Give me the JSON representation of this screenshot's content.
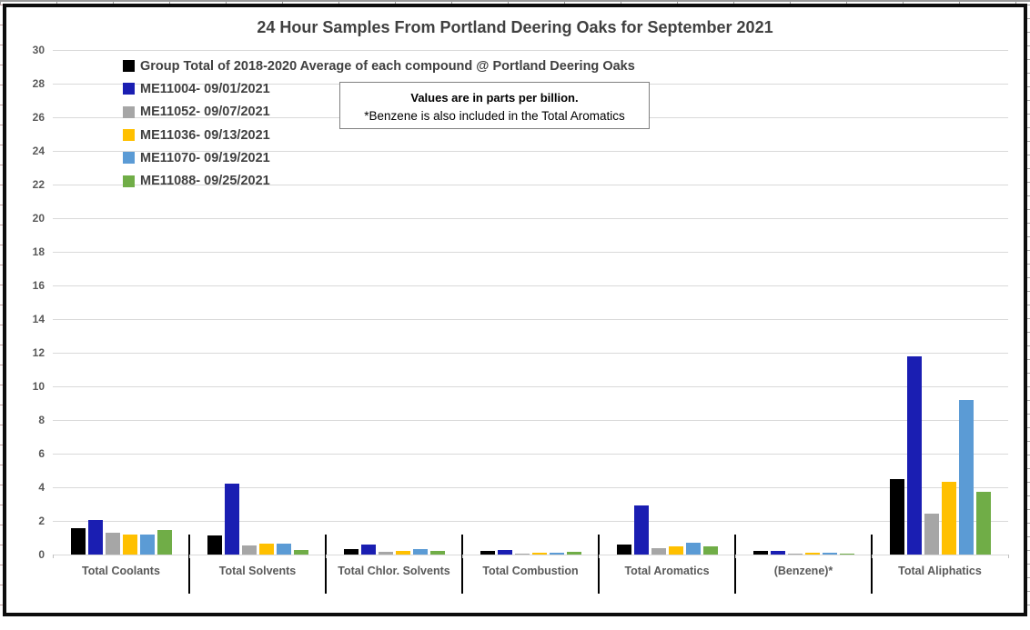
{
  "chart_data": {
    "type": "bar",
    "title": "24 Hour Samples From Portland Deering Oaks for September 2021",
    "note": {
      "line1": "Values are in parts per billion.",
      "line2": "*Benzene is also included in the Total Aromatics"
    },
    "categories": [
      "Total Coolants",
      "Total Solvents",
      "Total Chlor. Solvents",
      "Total Combustion",
      "Total Aromatics",
      "(Benzene)*",
      "Total Aliphatics"
    ],
    "series": [
      {
        "name": "Group Total of 2018-2020 Average of each compound @ Portland Deering Oaks",
        "color": "#000000",
        "values": [
          1.55,
          1.15,
          0.35,
          0.22,
          0.6,
          0.2,
          4.5
        ]
      },
      {
        "name": "ME11004- 09/01/2021",
        "color": "#1A1EB2",
        "values": [
          2.05,
          4.2,
          0.6,
          0.27,
          2.9,
          0.22,
          11.8
        ]
      },
      {
        "name": "ME11052- 09/07/2021",
        "color": "#A6A6A6",
        "values": [
          1.3,
          0.55,
          0.18,
          0.07,
          0.4,
          0.07,
          2.45
        ]
      },
      {
        "name": "ME11036- 09/13/2021",
        "color": "#FFC000",
        "values": [
          1.2,
          0.65,
          0.22,
          0.09,
          0.5,
          0.09,
          4.3
        ]
      },
      {
        "name": "ME11070- 09/19/2021",
        "color": "#5B9BD5",
        "values": [
          1.2,
          0.65,
          0.3,
          0.11,
          0.7,
          0.09,
          9.2
        ]
      },
      {
        "name": "ME11088- 09/25/2021",
        "color": "#70AD47",
        "values": [
          1.45,
          0.28,
          0.23,
          0.16,
          0.5,
          0.07,
          3.75
        ]
      }
    ],
    "ylim": [
      0,
      30
    ],
    "ytick_step": 2,
    "y_ticks": [
      0,
      2,
      4,
      6,
      8,
      10,
      12,
      14,
      16,
      18,
      20,
      22,
      24,
      26,
      28,
      30
    ],
    "grid": true,
    "legend_position": "top-left-inside",
    "colors": {
      "gridline": "#D9D9D9",
      "axis_text": "#595959",
      "category_text": "#595959",
      "title_text": "#404040",
      "divider": "#000000",
      "axis_tick": "#BFBFBF",
      "chart_border": "#0d0d0d"
    }
  }
}
